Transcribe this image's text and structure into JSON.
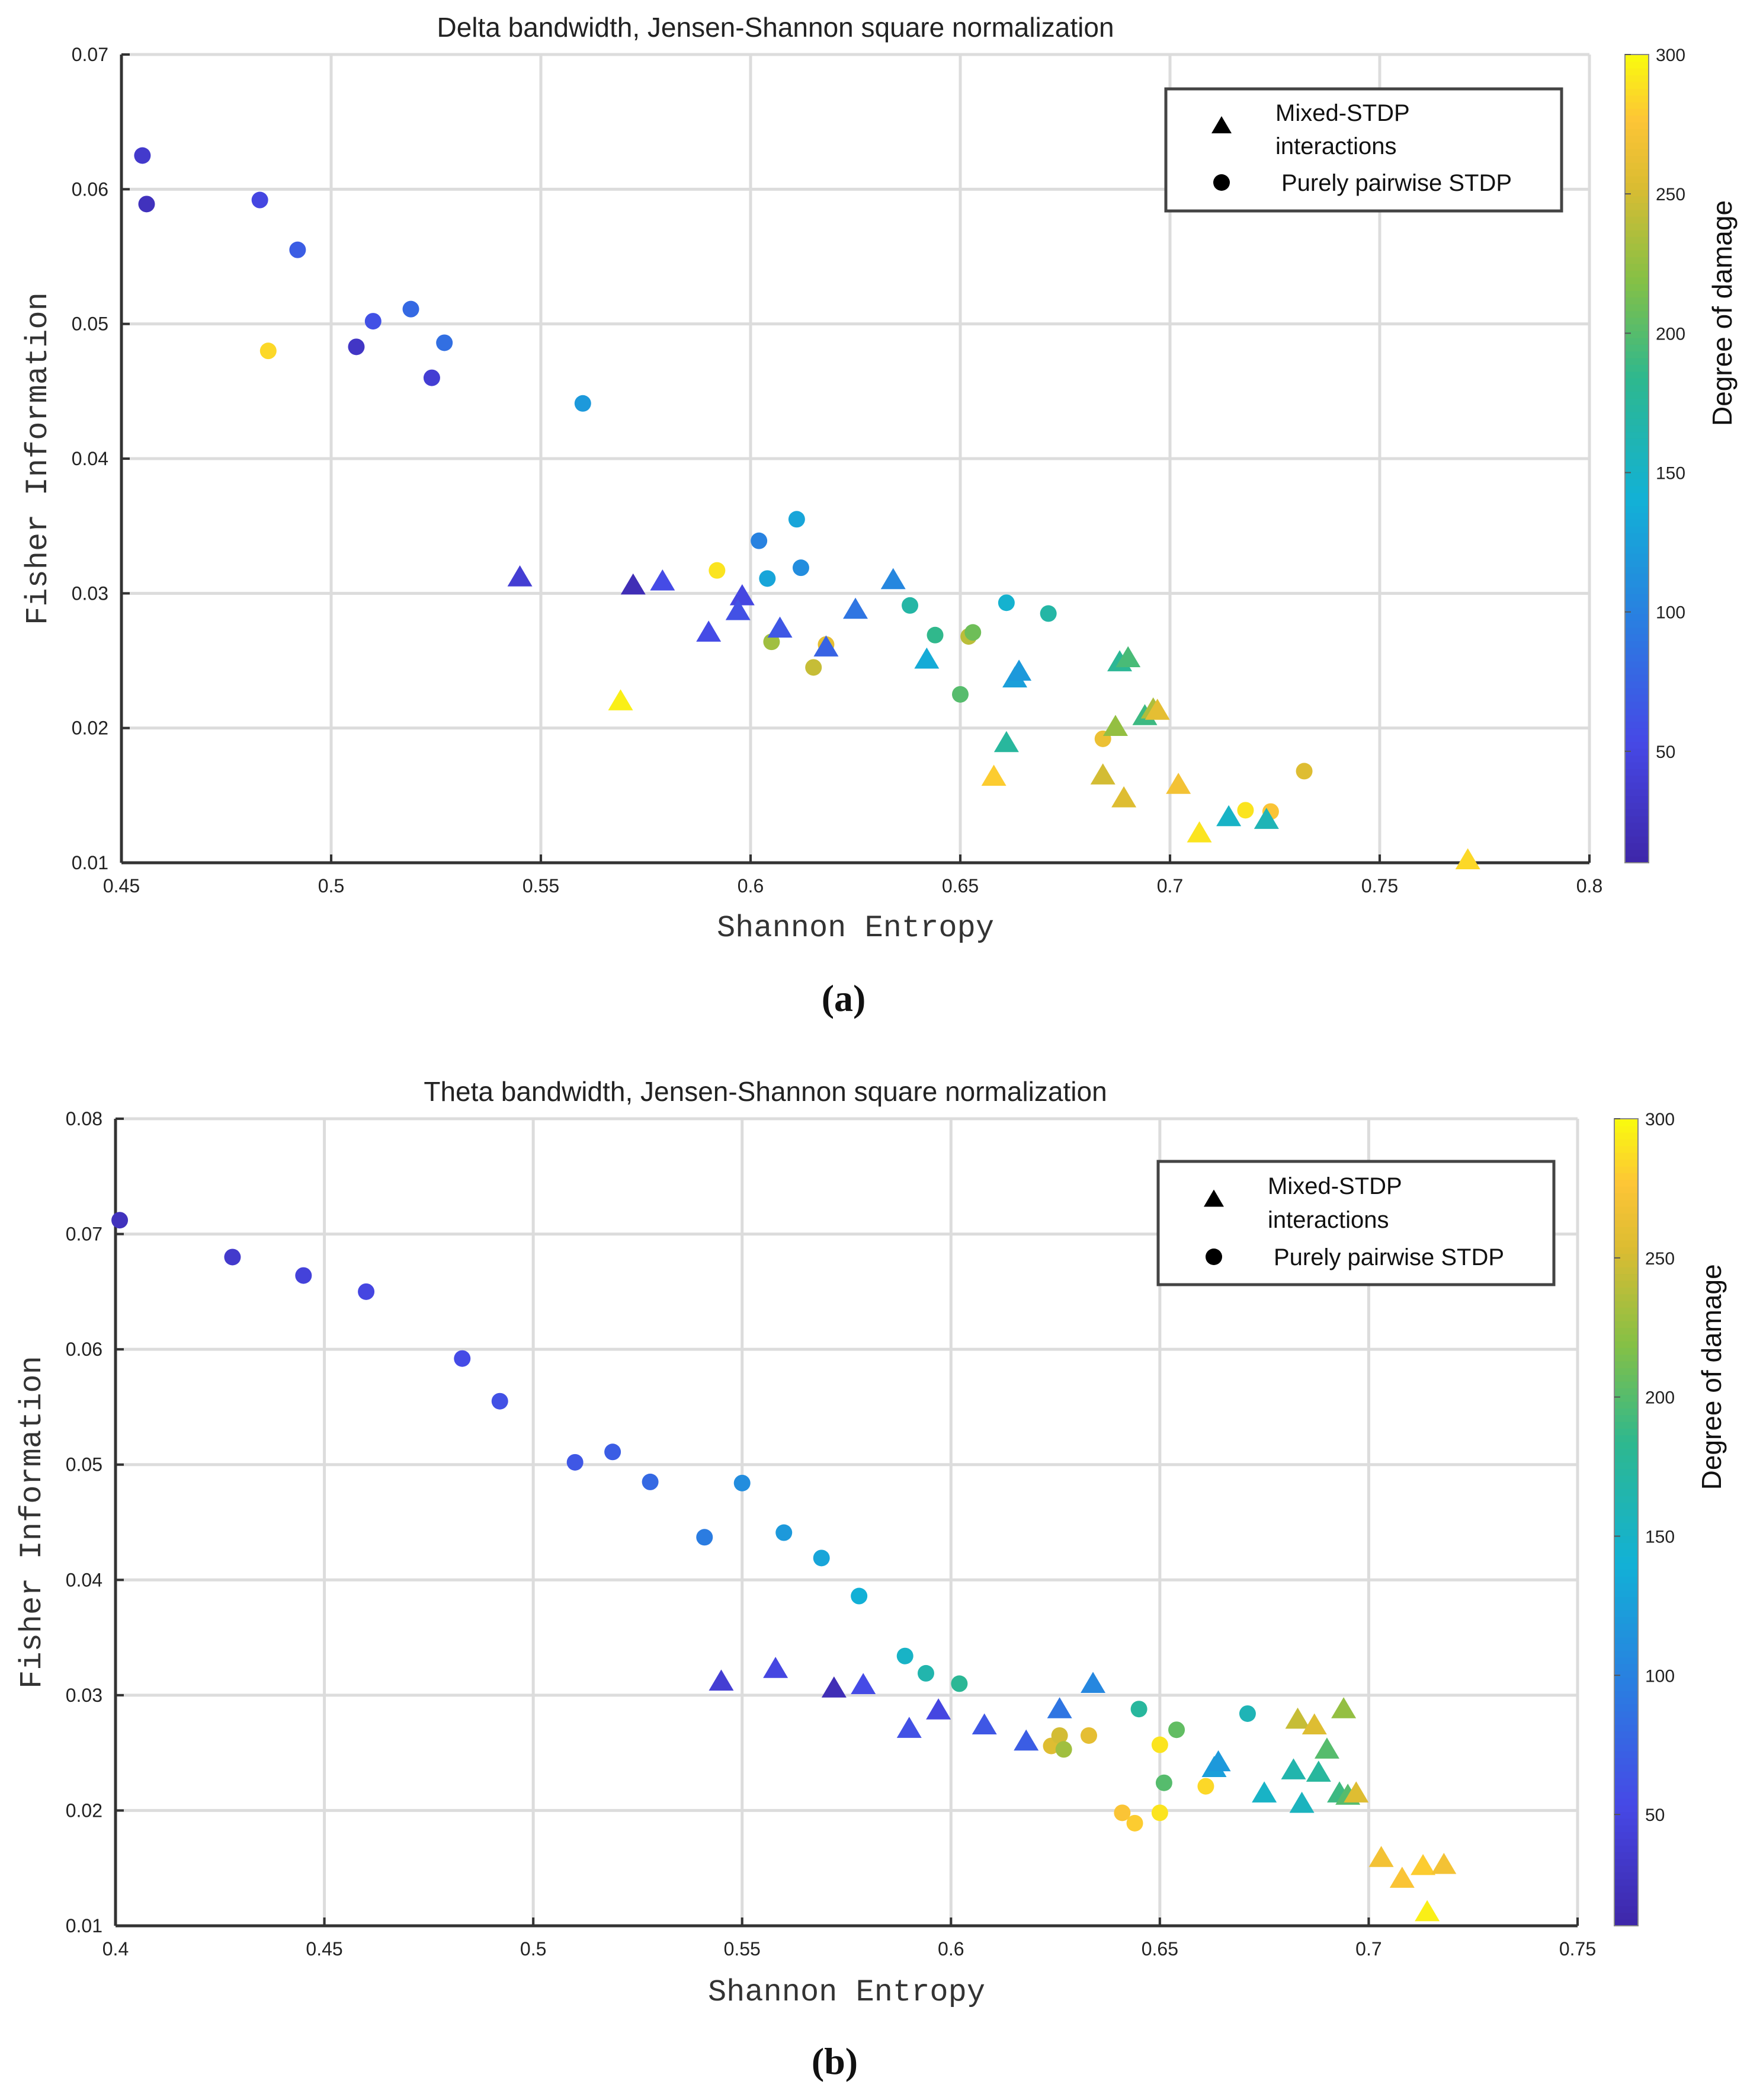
{
  "chart_data": [
    {
      "type": "scatter",
      "panel_caption": "(a)",
      "title": "Delta bandwidth, Jensen-Shannon square normalization",
      "xlabel": "Shannon Entropy",
      "ylabel": "Fisher Information",
      "xlim": [
        0.45,
        0.8
      ],
      "ylim": [
        0.01,
        0.07
      ],
      "xticks": [
        0.45,
        0.5,
        0.55,
        0.6,
        0.65,
        0.7,
        0.75,
        0.8
      ],
      "xtick_labels": [
        "0.45",
        "0.5",
        "0.55",
        "0.6",
        "0.65",
        "0.7",
        "0.75",
        "0.8"
      ],
      "yticks": [
        0.01,
        0.02,
        0.03,
        0.04,
        0.05,
        0.06,
        0.07
      ],
      "ytick_labels": [
        "0.01",
        "0.02",
        "0.03",
        "0.04",
        "0.05",
        "0.06",
        "0.07"
      ],
      "grid": true,
      "legend_position": "top-right",
      "legend": [
        {
          "marker": "triangle",
          "label_lines": [
            "Mixed-STDP",
            "interactions"
          ]
        },
        {
          "marker": "circle",
          "label_lines": [
            "Purely pairwise STDP"
          ]
        }
      ],
      "colorbar": {
        "label": "Degree of damage",
        "range": [
          10,
          300
        ],
        "ticks": [
          50,
          100,
          150,
          200,
          250,
          300
        ],
        "tick_labels": [
          "50",
          "100",
          "150",
          "200",
          "250",
          "300"
        ]
      },
      "series": [
        {
          "name": "Purely pairwise STDP",
          "marker": "circle",
          "points": [
            {
              "x": 0.455,
              "y": 0.0625,
              "damage": 35
            },
            {
              "x": 0.456,
              "y": 0.0589,
              "damage": 25
            },
            {
              "x": 0.483,
              "y": 0.0592,
              "damage": 50
            },
            {
              "x": 0.492,
              "y": 0.0555,
              "damage": 70
            },
            {
              "x": 0.485,
              "y": 0.048,
              "damage": 285
            },
            {
              "x": 0.51,
              "y": 0.0502,
              "damage": 60
            },
            {
              "x": 0.519,
              "y": 0.0511,
              "damage": 80
            },
            {
              "x": 0.506,
              "y": 0.0483,
              "damage": 30
            },
            {
              "x": 0.527,
              "y": 0.0486,
              "damage": 85
            },
            {
              "x": 0.524,
              "y": 0.046,
              "damage": 40
            },
            {
              "x": 0.56,
              "y": 0.0441,
              "damage": 120
            },
            {
              "x": 0.611,
              "y": 0.0355,
              "damage": 130
            },
            {
              "x": 0.602,
              "y": 0.0339,
              "damage": 100
            },
            {
              "x": 0.612,
              "y": 0.0319,
              "damage": 110
            },
            {
              "x": 0.592,
              "y": 0.0317,
              "damage": 290
            },
            {
              "x": 0.604,
              "y": 0.0311,
              "damage": 130
            },
            {
              "x": 0.638,
              "y": 0.0291,
              "damage": 170
            },
            {
              "x": 0.661,
              "y": 0.0293,
              "damage": 145
            },
            {
              "x": 0.671,
              "y": 0.0285,
              "damage": 170
            },
            {
              "x": 0.644,
              "y": 0.0269,
              "damage": 185
            },
            {
              "x": 0.652,
              "y": 0.0268,
              "damage": 240
            },
            {
              "x": 0.653,
              "y": 0.0271,
              "damage": 210
            },
            {
              "x": 0.605,
              "y": 0.0264,
              "damage": 230
            },
            {
              "x": 0.618,
              "y": 0.0262,
              "damage": 260
            },
            {
              "x": 0.615,
              "y": 0.0245,
              "damage": 245
            },
            {
              "x": 0.65,
              "y": 0.0225,
              "damage": 200
            },
            {
              "x": 0.684,
              "y": 0.0192,
              "damage": 265
            },
            {
              "x": 0.718,
              "y": 0.0139,
              "damage": 290
            },
            {
              "x": 0.724,
              "y": 0.0138,
              "damage": 275
            },
            {
              "x": 0.732,
              "y": 0.0168,
              "damage": 255
            }
          ]
        },
        {
          "name": "Mixed-STDP interactions",
          "marker": "triangle",
          "points": [
            {
              "x": 0.545,
              "y": 0.0312,
              "damage": 40
            },
            {
              "x": 0.572,
              "y": 0.0306,
              "damage": 20
            },
            {
              "x": 0.579,
              "y": 0.0309,
              "damage": 55
            },
            {
              "x": 0.598,
              "y": 0.0298,
              "damage": 50
            },
            {
              "x": 0.597,
              "y": 0.0287,
              "damage": 60
            },
            {
              "x": 0.59,
              "y": 0.0271,
              "damage": 55
            },
            {
              "x": 0.607,
              "y": 0.0274,
              "damage": 65
            },
            {
              "x": 0.618,
              "y": 0.026,
              "damage": 75
            },
            {
              "x": 0.625,
              "y": 0.0288,
              "damage": 90
            },
            {
              "x": 0.634,
              "y": 0.031,
              "damage": 105
            },
            {
              "x": 0.642,
              "y": 0.0251,
              "damage": 135
            },
            {
              "x": 0.663,
              "y": 0.0237,
              "damage": 125
            },
            {
              "x": 0.664,
              "y": 0.0242,
              "damage": 120
            },
            {
              "x": 0.569,
              "y": 0.022,
              "damage": 295
            },
            {
              "x": 0.661,
              "y": 0.0189,
              "damage": 175
            },
            {
              "x": 0.658,
              "y": 0.0164,
              "damage": 280
            },
            {
              "x": 0.684,
              "y": 0.0165,
              "damage": 250
            },
            {
              "x": 0.687,
              "y": 0.0201,
              "damage": 225
            },
            {
              "x": 0.689,
              "y": 0.0148,
              "damage": 255
            },
            {
              "x": 0.688,
              "y": 0.0249,
              "damage": 180
            },
            {
              "x": 0.69,
              "y": 0.0252,
              "damage": 195
            },
            {
              "x": 0.694,
              "y": 0.0209,
              "damage": 190
            },
            {
              "x": 0.696,
              "y": 0.0214,
              "damage": 235
            },
            {
              "x": 0.697,
              "y": 0.0213,
              "damage": 260
            },
            {
              "x": 0.702,
              "y": 0.0158,
              "damage": 270
            },
            {
              "x": 0.707,
              "y": 0.0122,
              "damage": 290
            },
            {
              "x": 0.714,
              "y": 0.0134,
              "damage": 150
            },
            {
              "x": 0.723,
              "y": 0.0132,
              "damage": 160
            },
            {
              "x": 0.771,
              "y": 0.0102,
              "damage": 285
            }
          ]
        }
      ]
    },
    {
      "type": "scatter",
      "panel_caption": "(b)",
      "title": "Theta bandwidth, Jensen-Shannon square normalization",
      "xlabel": "Shannon Entropy",
      "ylabel": "Fisher Information",
      "xlim": [
        0.4,
        0.75
      ],
      "ylim": [
        0.01,
        0.08
      ],
      "xticks": [
        0.4,
        0.45,
        0.5,
        0.55,
        0.6,
        0.65,
        0.7,
        0.75
      ],
      "xtick_labels": [
        "0.4",
        "0.45",
        "0.5",
        "0.55",
        "0.6",
        "0.65",
        "0.7",
        "0.75"
      ],
      "yticks": [
        0.01,
        0.02,
        0.03,
        0.04,
        0.05,
        0.06,
        0.07,
        0.08
      ],
      "ytick_labels": [
        "0.01",
        "0.02",
        "0.03",
        "0.04",
        "0.05",
        "0.06",
        "0.07",
        "0.08"
      ],
      "grid": true,
      "legend_position": "top-right",
      "legend": [
        {
          "marker": "triangle",
          "label_lines": [
            "Mixed-STDP",
            "interactions"
          ]
        },
        {
          "marker": "circle",
          "label_lines": [
            "Purely pairwise STDP"
          ]
        }
      ],
      "colorbar": {
        "label": "Degree of damage",
        "range": [
          10,
          300
        ],
        "ticks": [
          50,
          100,
          150,
          200,
          250,
          300
        ],
        "tick_labels": [
          "50",
          "100",
          "150",
          "200",
          "250",
          "300"
        ]
      },
      "series": [
        {
          "name": "Purely pairwise STDP",
          "marker": "circle",
          "points": [
            {
              "x": 0.401,
              "y": 0.0712,
              "damage": 25
            },
            {
              "x": 0.428,
              "y": 0.068,
              "damage": 35
            },
            {
              "x": 0.445,
              "y": 0.0664,
              "damage": 45
            },
            {
              "x": 0.46,
              "y": 0.065,
              "damage": 50
            },
            {
              "x": 0.483,
              "y": 0.0592,
              "damage": 55
            },
            {
              "x": 0.492,
              "y": 0.0555,
              "damage": 60
            },
            {
              "x": 0.51,
              "y": 0.0502,
              "damage": 65
            },
            {
              "x": 0.519,
              "y": 0.0511,
              "damage": 70
            },
            {
              "x": 0.528,
              "y": 0.0485,
              "damage": 80
            },
            {
              "x": 0.541,
              "y": 0.0437,
              "damage": 95
            },
            {
              "x": 0.55,
              "y": 0.0484,
              "damage": 110
            },
            {
              "x": 0.56,
              "y": 0.0441,
              "damage": 120
            },
            {
              "x": 0.569,
              "y": 0.0419,
              "damage": 130
            },
            {
              "x": 0.578,
              "y": 0.0386,
              "damage": 140
            },
            {
              "x": 0.589,
              "y": 0.0334,
              "damage": 150
            },
            {
              "x": 0.594,
              "y": 0.0319,
              "damage": 165
            },
            {
              "x": 0.602,
              "y": 0.031,
              "damage": 180
            },
            {
              "x": 0.645,
              "y": 0.0288,
              "damage": 175
            },
            {
              "x": 0.671,
              "y": 0.0284,
              "damage": 160
            },
            {
              "x": 0.654,
              "y": 0.027,
              "damage": 205
            },
            {
              "x": 0.651,
              "y": 0.0224,
              "damage": 200
            },
            {
              "x": 0.624,
              "y": 0.0256,
              "damage": 255
            },
            {
              "x": 0.626,
              "y": 0.0265,
              "damage": 250
            },
            {
              "x": 0.627,
              "y": 0.0253,
              "damage": 230
            },
            {
              "x": 0.633,
              "y": 0.0265,
              "damage": 260
            },
            {
              "x": 0.65,
              "y": 0.0257,
              "damage": 290
            },
            {
              "x": 0.661,
              "y": 0.0221,
              "damage": 285
            },
            {
              "x": 0.641,
              "y": 0.0198,
              "damage": 275
            },
            {
              "x": 0.644,
              "y": 0.0189,
              "damage": 280
            },
            {
              "x": 0.65,
              "y": 0.0198,
              "damage": 290
            }
          ]
        },
        {
          "name": "Mixed-STDP interactions",
          "marker": "triangle",
          "points": [
            {
              "x": 0.545,
              "y": 0.0312,
              "damage": 40
            },
            {
              "x": 0.558,
              "y": 0.0323,
              "damage": 50
            },
            {
              "x": 0.572,
              "y": 0.0306,
              "damage": 20
            },
            {
              "x": 0.579,
              "y": 0.0309,
              "damage": 55
            },
            {
              "x": 0.59,
              "y": 0.0271,
              "damage": 60
            },
            {
              "x": 0.597,
              "y": 0.0287,
              "damage": 50
            },
            {
              "x": 0.608,
              "y": 0.0274,
              "damage": 65
            },
            {
              "x": 0.618,
              "y": 0.026,
              "damage": 70
            },
            {
              "x": 0.626,
              "y": 0.0288,
              "damage": 90
            },
            {
              "x": 0.634,
              "y": 0.031,
              "damage": 105
            },
            {
              "x": 0.663,
              "y": 0.0237,
              "damage": 125
            },
            {
              "x": 0.664,
              "y": 0.0242,
              "damage": 120
            },
            {
              "x": 0.675,
              "y": 0.0215,
              "damage": 150
            },
            {
              "x": 0.682,
              "y": 0.0235,
              "damage": 165
            },
            {
              "x": 0.684,
              "y": 0.0206,
              "damage": 155
            },
            {
              "x": 0.683,
              "y": 0.0279,
              "damage": 245
            },
            {
              "x": 0.687,
              "y": 0.0274,
              "damage": 255
            },
            {
              "x": 0.688,
              "y": 0.0233,
              "damage": 175
            },
            {
              "x": 0.69,
              "y": 0.0253,
              "damage": 200
            },
            {
              "x": 0.693,
              "y": 0.0215,
              "damage": 190
            },
            {
              "x": 0.694,
              "y": 0.0288,
              "damage": 225
            },
            {
              "x": 0.695,
              "y": 0.0213,
              "damage": 200
            },
            {
              "x": 0.697,
              "y": 0.0215,
              "damage": 255
            },
            {
              "x": 0.703,
              "y": 0.0159,
              "damage": 270
            },
            {
              "x": 0.708,
              "y": 0.0141,
              "damage": 275
            },
            {
              "x": 0.713,
              "y": 0.0152,
              "damage": 280
            },
            {
              "x": 0.718,
              "y": 0.0153,
              "damage": 270
            },
            {
              "x": 0.714,
              "y": 0.0112,
              "damage": 295
            }
          ]
        }
      ]
    }
  ]
}
